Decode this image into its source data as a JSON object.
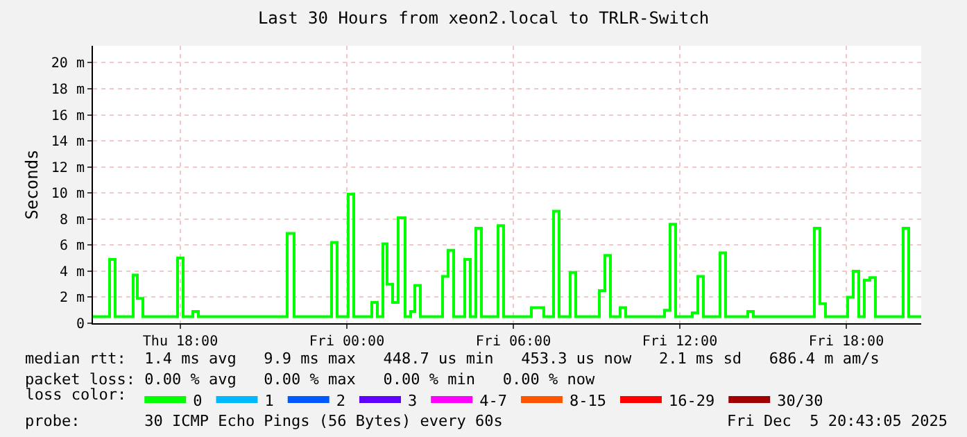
{
  "chart_data": {
    "type": "step",
    "title": "Last 30 Hours from xeon2.local to TRLR-Switch",
    "ylabel": "Seconds",
    "x": [
      "2025-12-04T14:51",
      "2025-12-04T15:27",
      "2025-12-04T15:39",
      "2025-12-04T16:18",
      "2025-12-04T16:27",
      "2025-12-04T16:39",
      "2025-12-04T17:54",
      "2025-12-04T18:06",
      "2025-12-04T18:27",
      "2025-12-04T18:39",
      "2025-12-04T21:51",
      "2025-12-04T22:06",
      "2025-12-04T23:27",
      "2025-12-04T23:39",
      "2025-12-05T00:03",
      "2025-12-05T00:15",
      "2025-12-05T00:54",
      "2025-12-05T01:06",
      "2025-12-05T01:18",
      "2025-12-05T01:27",
      "2025-12-05T01:39",
      "2025-12-05T01:51",
      "2025-12-05T02:06",
      "2025-12-05T02:18",
      "2025-12-05T02:27",
      "2025-12-05T02:39",
      "2025-12-05T03:27",
      "2025-12-05T03:39",
      "2025-12-05T03:51",
      "2025-12-05T04:15",
      "2025-12-05T04:27",
      "2025-12-05T04:39",
      "2025-12-05T04:51",
      "2025-12-05T05:27",
      "2025-12-05T05:39",
      "2025-12-05T06:39",
      "2025-12-05T07:06",
      "2025-12-05T07:27",
      "2025-12-05T07:39",
      "2025-12-05T08:03",
      "2025-12-05T08:15",
      "2025-12-05T09:06",
      "2025-12-05T09:18",
      "2025-12-05T09:30",
      "2025-12-05T09:51",
      "2025-12-05T10:03",
      "2025-12-05T11:27",
      "2025-12-05T11:39",
      "2025-12-05T11:51",
      "2025-12-05T12:27",
      "2025-12-05T12:39",
      "2025-12-05T12:51",
      "2025-12-05T13:27",
      "2025-12-05T13:39",
      "2025-12-05T14:27",
      "2025-12-05T14:39",
      "2025-12-05T16:51",
      "2025-12-05T17:03",
      "2025-12-05T17:15",
      "2025-12-05T18:03",
      "2025-12-05T18:15",
      "2025-12-05T18:27",
      "2025-12-05T18:39",
      "2025-12-05T18:51",
      "2025-12-05T19:03",
      "2025-12-05T20:03",
      "2025-12-05T20:15",
      "2025-12-05T20:42"
    ],
    "series": [
      {
        "name": "0",
        "color": "#00ff00",
        "values": [
          0.5,
          4.9,
          0.5,
          3.7,
          1.9,
          0.5,
          5.0,
          0.5,
          0.9,
          0.5,
          6.9,
          0.5,
          6.2,
          0.5,
          9.9,
          0.5,
          1.6,
          0.5,
          6.1,
          3.0,
          1.6,
          8.1,
          0.5,
          0.9,
          2.9,
          0.5,
          3.6,
          5.6,
          0.5,
          4.9,
          0.5,
          7.3,
          0.5,
          7.5,
          0.5,
          1.2,
          0.5,
          8.6,
          0.5,
          3.9,
          0.5,
          2.5,
          5.2,
          0.5,
          1.2,
          0.5,
          1.0,
          7.6,
          0.5,
          0.8,
          3.6,
          0.5,
          5.4,
          0.5,
          0.9,
          0.5,
          7.3,
          1.5,
          0.5,
          2.0,
          4.0,
          0.5,
          3.3,
          3.5,
          0.5,
          7.3,
          0.5,
          0.5
        ]
      },
      {
        "name": "1",
        "color": "#00b8ff",
        "values": [
          null,
          null,
          null,
          null,
          null,
          null,
          null,
          null,
          null,
          null,
          null,
          null,
          null,
          null,
          null,
          null,
          null,
          null,
          null,
          null,
          null,
          null,
          null,
          null,
          null,
          null,
          null,
          null,
          null,
          null,
          null,
          null,
          null,
          null,
          null,
          null,
          null,
          null,
          null,
          null,
          null,
          null,
          null,
          null,
          null,
          null,
          null,
          null,
          null,
          null,
          null,
          null,
          null,
          null,
          null,
          null,
          null,
          null,
          null,
          null,
          null,
          null,
          null,
          null,
          null,
          null,
          null,
          null
        ]
      },
      {
        "name": "2",
        "color": "#0059ff",
        "values": [
          null,
          null,
          null,
          null,
          null,
          null,
          null,
          null,
          null,
          null,
          null,
          null,
          null,
          null,
          null,
          null,
          null,
          null,
          null,
          null,
          null,
          null,
          null,
          null,
          null,
          null,
          null,
          null,
          null,
          null,
          null,
          null,
          null,
          null,
          null,
          null,
          null,
          null,
          null,
          null,
          null,
          null,
          null,
          null,
          null,
          null,
          null,
          null,
          null,
          null,
          null,
          null,
          null,
          null,
          null,
          null,
          null,
          null,
          null,
          null,
          null,
          null,
          null,
          null,
          null,
          null,
          null,
          null
        ]
      },
      {
        "name": "3",
        "color": "#5e00ff",
        "values": [
          null,
          null,
          null,
          null,
          null,
          null,
          null,
          null,
          null,
          null,
          null,
          null,
          null,
          null,
          null,
          null,
          null,
          null,
          null,
          null,
          null,
          null,
          null,
          null,
          null,
          null,
          null,
          null,
          null,
          null,
          null,
          null,
          null,
          null,
          null,
          null,
          null,
          null,
          null,
          null,
          null,
          null,
          null,
          null,
          null,
          null,
          null,
          null,
          null,
          null,
          null,
          null,
          null,
          null,
          null,
          null,
          null,
          null,
          null,
          null,
          null,
          null,
          null,
          null,
          null,
          null,
          null,
          null
        ]
      },
      {
        "name": "4-7",
        "color": "#ff00ff",
        "values": [
          null,
          null,
          null,
          null,
          null,
          null,
          null,
          null,
          null,
          null,
          null,
          null,
          null,
          null,
          null,
          null,
          null,
          null,
          null,
          null,
          null,
          null,
          null,
          null,
          null,
          null,
          null,
          null,
          null,
          null,
          null,
          null,
          null,
          null,
          null,
          null,
          null,
          null,
          null,
          null,
          null,
          null,
          null,
          null,
          null,
          null,
          null,
          null,
          null,
          null,
          null,
          null,
          null,
          null,
          null,
          null,
          null,
          null,
          null,
          null,
          null,
          null,
          null,
          null,
          null,
          null,
          null,
          null
        ]
      },
      {
        "name": "8-15",
        "color": "#ff5500",
        "values": [
          null,
          null,
          null,
          null,
          null,
          null,
          null,
          null,
          null,
          null,
          null,
          null,
          null,
          null,
          null,
          null,
          null,
          null,
          null,
          null,
          null,
          null,
          null,
          null,
          null,
          null,
          null,
          null,
          null,
          null,
          null,
          null,
          null,
          null,
          null,
          null,
          null,
          null,
          null,
          null,
          null,
          null,
          null,
          null,
          null,
          null,
          null,
          null,
          null,
          null,
          null,
          null,
          null,
          null,
          null,
          null,
          null,
          null,
          null,
          null,
          null,
          null,
          null,
          null,
          null,
          null,
          null,
          null
        ]
      },
      {
        "name": "16-29",
        "color": "#ff0000",
        "values": [
          null,
          null,
          null,
          null,
          null,
          null,
          null,
          null,
          null,
          null,
          null,
          null,
          null,
          null,
          null,
          null,
          null,
          null,
          null,
          null,
          null,
          null,
          null,
          null,
          null,
          null,
          null,
          null,
          null,
          null,
          null,
          null,
          null,
          null,
          null,
          null,
          null,
          null,
          null,
          null,
          null,
          null,
          null,
          null,
          null,
          null,
          null,
          null,
          null,
          null,
          null,
          null,
          null,
          null,
          null,
          null,
          null,
          null,
          null,
          null,
          null,
          null,
          null,
          null,
          null,
          null,
          null,
          null
        ]
      },
      {
        "name": "30/30",
        "color": "#a10000",
        "values": [
          null,
          null,
          null,
          null,
          null,
          null,
          null,
          null,
          null,
          null,
          null,
          null,
          null,
          null,
          null,
          null,
          null,
          null,
          null,
          null,
          null,
          null,
          null,
          null,
          null,
          null,
          null,
          null,
          null,
          null,
          null,
          null,
          null,
          null,
          null,
          null,
          null,
          null,
          null,
          null,
          null,
          null,
          null,
          null,
          null,
          null,
          null,
          null,
          null,
          null,
          null,
          null,
          null,
          null,
          null,
          null,
          null,
          null,
          null,
          null,
          null,
          null,
          null,
          null,
          null,
          null,
          null,
          null
        ]
      }
    ],
    "legend_title": "loss color:",
    "legend": "bottom",
    "xlim": [
      "2025-12-04T14:51",
      "2025-12-05T20:42"
    ],
    "xticks": [
      {
        "value": "2025-12-04T18:00",
        "label": "Thu 18:00"
      },
      {
        "value": "2025-12-05T00:00",
        "label": "Fri 00:00"
      },
      {
        "value": "2025-12-05T06:00",
        "label": "Fri 06:00"
      },
      {
        "value": "2025-12-05T12:00",
        "label": "Fri 12:00"
      },
      {
        "value": "2025-12-05T18:00",
        "label": "Fri 18:00"
      }
    ],
    "ylim": [
      0,
      21.3
    ],
    "yticks": [
      0,
      {
        "value": 2,
        "label": "2 m"
      },
      {
        "value": 4,
        "label": "4 m"
      },
      {
        "value": 6,
        "label": "6 m"
      },
      {
        "value": 8,
        "label": "8 m"
      },
      {
        "value": 10,
        "label": "10 m"
      },
      {
        "value": 12,
        "label": "12 m"
      },
      {
        "value": 14,
        "label": "14 m"
      },
      {
        "value": 16,
        "label": "16 m"
      },
      {
        "value": 18,
        "label": "18 m"
      },
      {
        "value": 20,
        "label": "20 m"
      }
    ],
    "grid": true,
    "annotations": [
      "median rtt:  1.4 ms avg   9.9 ms max   448.7 us min   453.3 us now   2.1 ms sd   686.4 m am/s",
      "packet loss: 0.00 % avg   0.00 % max   0.00 % min   0.00 % now",
      "probe:       30 ICMP Echo Pings (56 Bytes) every 60s",
      "Fri Dec  5 20:43:05 2025"
    ]
  }
}
